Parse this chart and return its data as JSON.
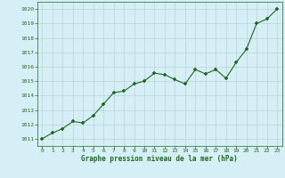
{
  "x": [
    0,
    1,
    2,
    3,
    4,
    5,
    6,
    7,
    8,
    9,
    10,
    11,
    12,
    13,
    14,
    15,
    16,
    17,
    18,
    19,
    20,
    21,
    22,
    23
  ],
  "y": [
    1011.0,
    1011.4,
    1011.7,
    1012.2,
    1012.1,
    1012.6,
    1013.4,
    1014.2,
    1014.3,
    1014.8,
    1015.0,
    1015.55,
    1015.45,
    1015.1,
    1014.8,
    1015.8,
    1015.5,
    1015.8,
    1015.2,
    1016.3,
    1017.2,
    1019.0,
    1019.3,
    1020.0
  ],
  "line_color": "#1a6b1a",
  "marker": "+",
  "marker_color": "#1a6b1a",
  "marker_size": 3.5,
  "background_color": "#d6eef5",
  "grid_color": "#b8d4d8",
  "xlabel": "Graphe pression niveau de la mer (hPa)",
  "xlabel_color": "#1a6b1a",
  "tick_color": "#1a6b1a",
  "xlim": [
    -0.5,
    23.5
  ],
  "ylim": [
    1010.5,
    1020.5
  ],
  "yticks": [
    1011,
    1012,
    1013,
    1014,
    1015,
    1016,
    1017,
    1018,
    1019,
    1020
  ],
  "xticks": [
    0,
    1,
    2,
    3,
    4,
    5,
    6,
    7,
    8,
    9,
    10,
    11,
    12,
    13,
    14,
    15,
    16,
    17,
    18,
    19,
    20,
    21,
    22,
    23
  ]
}
